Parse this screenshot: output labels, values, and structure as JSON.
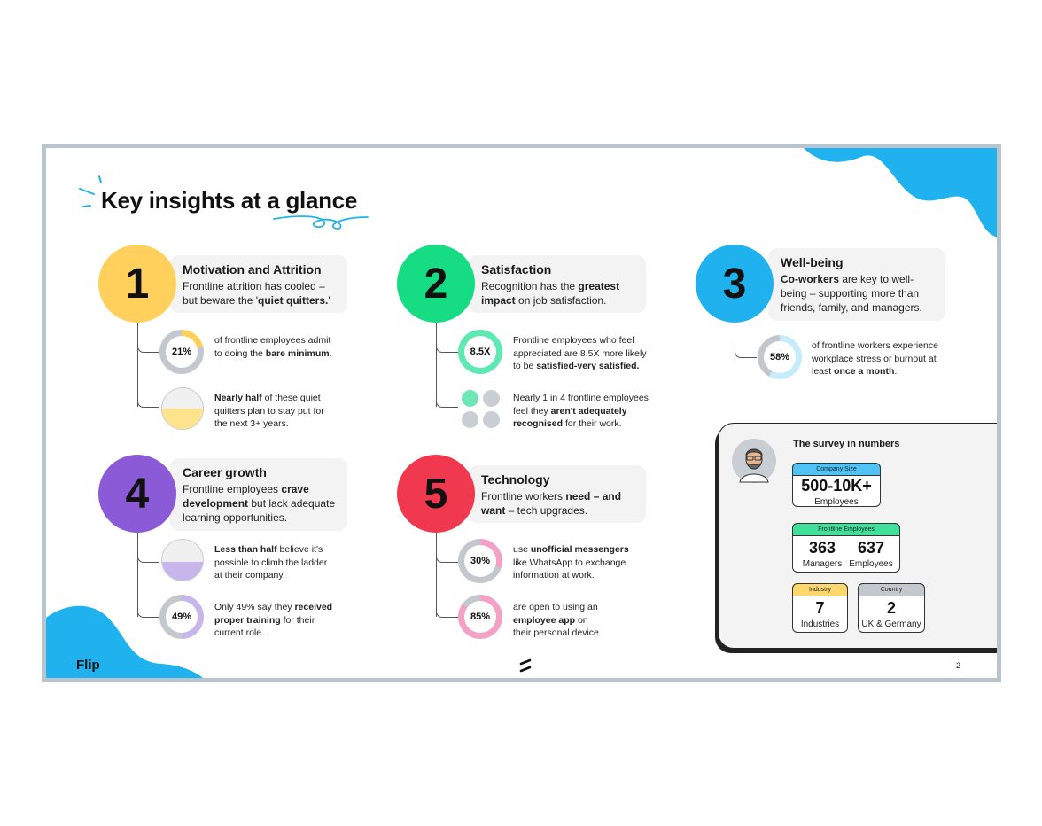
{
  "title": "Key insights at a glance",
  "logo_text": "Flip",
  "page_number": "2",
  "colors": {
    "yellow": "#ffd15c",
    "green": "#16dc84",
    "blue": "#1fb2ef",
    "purple": "#8a5ad7",
    "red": "#f0384f",
    "pink": "#f4a1c8",
    "grey": "#c2c8cd"
  },
  "sections": [
    {
      "number": "1",
      "title": "Motivation and Attrition",
      "text_a": "Frontline attrition has cooled –",
      "text_b": "but beware the '",
      "text_bold": "quiet quitters.",
      "text_c": "'",
      "stats": [
        {
          "value": "21%",
          "fraction": 0.21,
          "line1": "of frontline employees admit",
          "line2a": "to doing the ",
          "line2b": "bare minimum",
          "line2c": "."
        },
        {
          "fill": 0.5,
          "line1a": "Nearly half",
          "line1b": " of these quiet",
          "line2": "quitters plan to stay put for",
          "line3": "the next 3+ years."
        }
      ]
    },
    {
      "number": "2",
      "title": "Satisfaction",
      "text_a": "Recognition has the ",
      "text_bold1": "greatest",
      "text_bold2": "impact",
      "text_b": " on job satisfaction.",
      "stats": [
        {
          "value": "8.5X",
          "line1": "Frontline employees who feel",
          "line2": "appreciated are 8.5X more likely",
          "line3a": "to be ",
          "line3b": "satisfied-very satisfied."
        },
        {
          "line1": "Nearly 1 in 4 frontline employees",
          "line2a": "feel they ",
          "line2b": "aren't adequately",
          "line3a": "recognised",
          "line3b": " for their work."
        }
      ]
    },
    {
      "number": "3",
      "title": "Well-being",
      "text_bold": "Co-workers",
      "text_a": " are key to well-",
      "text_b": "being – supporting more than",
      "text_c": "friends, family, and managers.",
      "stats": [
        {
          "value": "58%",
          "fraction": 0.58,
          "line1": "of frontline workers experience",
          "line2": "workplace stress or burnout at",
          "line3a": "least ",
          "line3b": "once a month",
          "line3c": "."
        }
      ]
    },
    {
      "number": "4",
      "title": "Career growth",
      "text_a": "Frontline employees ",
      "text_bold1": "crave",
      "text_bold2": "development",
      "text_b": " but lack adequate",
      "text_c": "learning opportunities.",
      "stats": [
        {
          "fill": 0.45,
          "line1a": "Less than half",
          "line1b": " believe it's",
          "line2": "possible to climb the ladder",
          "line3": "at their company."
        },
        {
          "value": "49%",
          "fraction": 0.49,
          "line1a": "Only 49% say they ",
          "line1b": "received",
          "line2a": "proper training",
          "line2b": " for their",
          "line3": "current role."
        }
      ]
    },
    {
      "number": "5",
      "title": "Technology",
      "text_a": "Frontline workers ",
      "text_bold1": "need – and",
      "text_bold2": "want",
      "text_b": " – tech upgrades.",
      "stats": [
        {
          "value": "30%",
          "fraction": 0.3,
          "line1a": "use ",
          "line1b": "unofficial messengers",
          "line2": "like WhatsApp to exchange",
          "line3": "information at work."
        },
        {
          "value": "85%",
          "fraction": 0.85,
          "line1": "are open to using an",
          "line2a": "employee app",
          "line2b": " on",
          "line3": "their personal device."
        }
      ]
    }
  ],
  "survey": {
    "title": "The survey in numbers",
    "company": {
      "tag": "Company Size",
      "value": "500-10K+",
      "label": "Employees"
    },
    "frontline": {
      "tag": "Frontline Employees",
      "managers_value": "363",
      "managers_label": "Managers",
      "employees_value": "637",
      "employees_label": "Employees"
    },
    "industry": {
      "tag": "Industry",
      "value": "7",
      "label": "Industries"
    },
    "country": {
      "tag": "Country",
      "value": "2",
      "label": "UK & Germany"
    }
  }
}
